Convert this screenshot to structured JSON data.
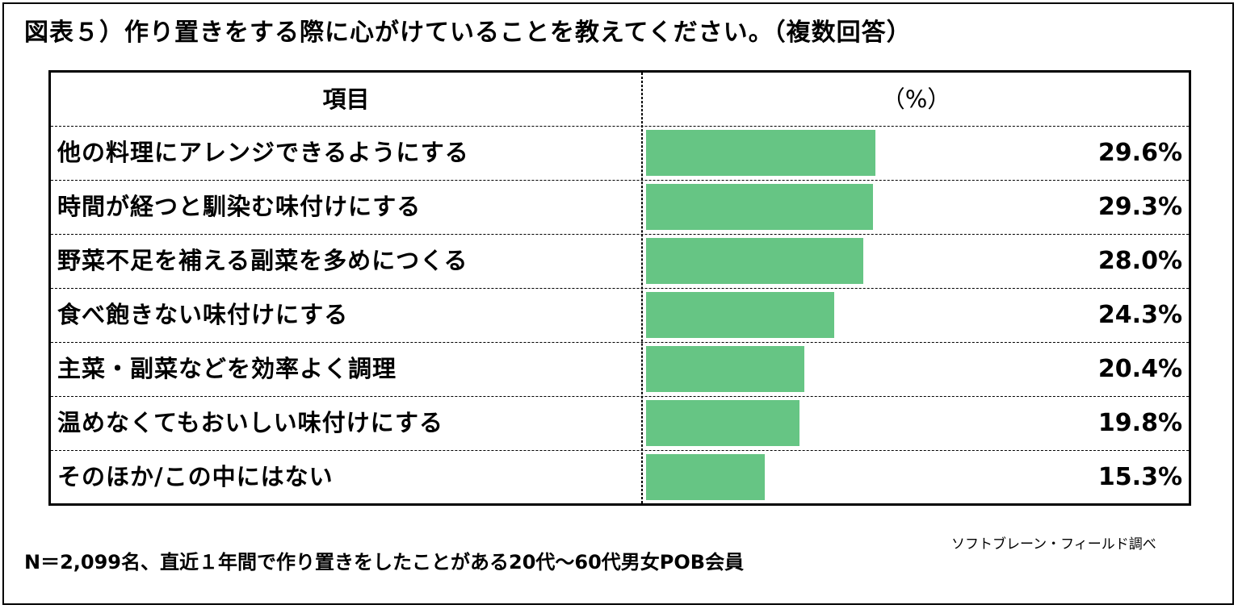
{
  "title": "図表５）作り置きをする際に心がけていることを教えてください。（複数回答）",
  "table": {
    "header_item": "項目",
    "header_value": "（%）"
  },
  "source": "ソフトブレーン・フィールド調べ",
  "footnote": "N＝2,099名、直近１年間で作り置きをしたことがある20代～60代男女POB会員",
  "colors": {
    "bar": "#66c584"
  },
  "chart_data": {
    "type": "bar",
    "orientation": "horizontal",
    "categories": [
      "他の料理にアレンジできるようにする",
      "時間が経つと馴染む味付けにする",
      "野菜不足を補える副菜を多めにつくる",
      "食べ飽きない味付けにする",
      "主菜・副菜などを効率よく調理",
      "温めなくてもおいしい味付けにする",
      "そのほか/この中にはない"
    ],
    "values": [
      29.6,
      29.3,
      28.0,
      24.3,
      20.4,
      19.8,
      15.3
    ],
    "value_labels": [
      "29.6%",
      "29.3%",
      "28.0%",
      "24.3%",
      "20.4%",
      "19.8%",
      "15.3%"
    ],
    "xlim": [
      0,
      70
    ],
    "grid": false,
    "legend": "none"
  }
}
